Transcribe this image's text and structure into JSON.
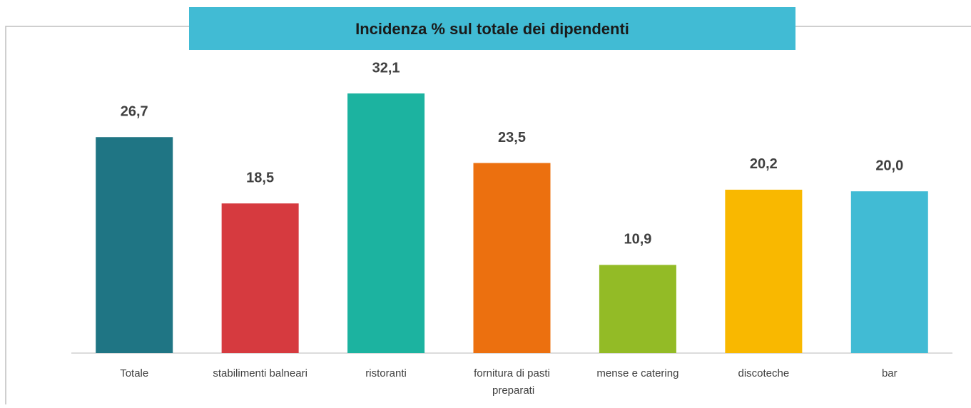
{
  "chart_data": {
    "type": "bar",
    "title": "Incidenza % sul totale dei dipendenti",
    "categories": [
      "Totale",
      "stabilimenti balneari",
      "ristoranti",
      "fornitura di pasti preparati",
      "mense e catering",
      "discoteche",
      "bar"
    ],
    "values": [
      26.7,
      18.5,
      32.1,
      23.5,
      10.9,
      20.2,
      20.0
    ],
    "value_labels": [
      "26,7",
      "18,5",
      "32,1",
      "23,5",
      "10,9",
      "20,2",
      "20,0"
    ],
    "colors": [
      "#1f7584",
      "#d63a3f",
      "#1cb3a0",
      "#ec700f",
      "#93bb26",
      "#f9b800",
      "#41bbd4"
    ]
  }
}
